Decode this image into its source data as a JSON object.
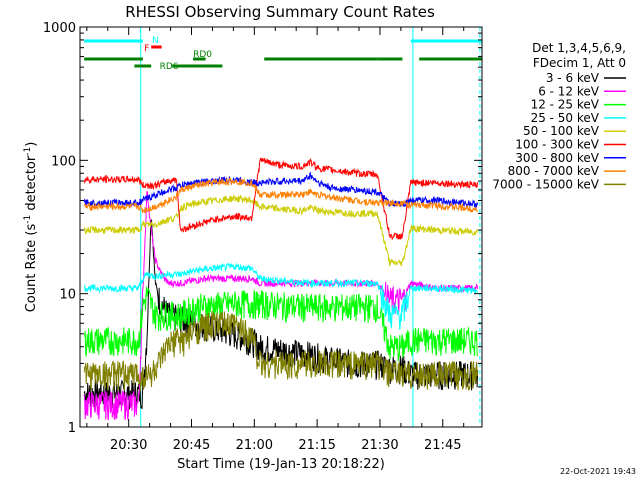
{
  "chart_data": {
    "type": "line",
    "title": "RHESSI Observing Summary Count Rates",
    "xlabel": "Start Time (19-Jan-13 20:18:22)",
    "ylabel_main": "Count Rate (s",
    "ylabel_sup1": "-1",
    "ylabel_mid": " detector",
    "ylabel_sup2": "-1",
    "ylabel_end": ")",
    "y_scale": "log",
    "ylim": [
      1,
      1000
    ],
    "xlim_minutes": [
      0,
      96
    ],
    "y_tick_labels": [
      {
        "value": 1,
        "label": "1"
      },
      {
        "value": 10,
        "label": "10"
      },
      {
        "value": 100,
        "label": "100"
      },
      {
        "value": 1000,
        "label": "1000"
      }
    ],
    "x_tick_labels": [
      {
        "minute": 11.63,
        "label": "20:30"
      },
      {
        "minute": 26.63,
        "label": "20:45"
      },
      {
        "minute": 41.63,
        "label": "21:00"
      },
      {
        "minute": 56.63,
        "label": "21:15"
      },
      {
        "minute": 71.63,
        "label": "21:30"
      },
      {
        "minute": 86.63,
        "label": "21:45"
      }
    ],
    "legend_header": [
      "Det 1,3,4,5,6,9,",
      "FDecim 1, Att 0"
    ],
    "legend_position": "right",
    "series": [
      {
        "name": "3 - 6 keV",
        "color": "#000000",
        "points": [
          [
            1,
            1.8
          ],
          [
            15,
            1.8
          ],
          [
            16,
            5
          ],
          [
            17,
            40
          ],
          [
            18,
            12
          ],
          [
            19,
            9
          ],
          [
            21,
            7
          ],
          [
            24,
            6.5
          ],
          [
            28,
            6
          ],
          [
            32,
            5.5
          ],
          [
            37,
            5
          ],
          [
            41,
            4.5
          ],
          [
            43,
            4
          ],
          [
            48,
            3.8
          ],
          [
            55,
            3.5
          ],
          [
            60,
            3.2
          ],
          [
            66,
            3
          ],
          [
            71,
            3
          ],
          [
            74,
            2.8
          ],
          [
            77,
            2.8
          ],
          [
            79,
            2.5
          ],
          [
            85,
            2.5
          ],
          [
            95,
            2.5
          ]
        ]
      },
      {
        "name": "6 - 12 keV",
        "color": "#ff00ff",
        "points": [
          [
            1,
            1.5
          ],
          [
            14,
            1.5
          ],
          [
            15,
            10
          ],
          [
            16,
            60
          ],
          [
            17,
            30
          ],
          [
            18,
            18
          ],
          [
            19,
            15
          ],
          [
            21,
            12
          ],
          [
            24,
            12
          ],
          [
            30,
            13
          ],
          [
            37,
            13
          ],
          [
            41,
            13
          ],
          [
            43,
            12
          ],
          [
            48,
            12
          ],
          [
            55,
            12
          ],
          [
            60,
            12
          ],
          [
            66,
            12
          ],
          [
            71,
            12
          ],
          [
            74,
            9
          ],
          [
            77,
            9
          ],
          [
            79,
            12
          ],
          [
            85,
            11
          ],
          [
            95,
            11
          ]
        ]
      },
      {
        "name": "12 - 25 keV",
        "color": "#00ff00",
        "points": [
          [
            1,
            4.5
          ],
          [
            14,
            4.5
          ],
          [
            15,
            8
          ],
          [
            16,
            10
          ],
          [
            18,
            7
          ],
          [
            21,
            7
          ],
          [
            24,
            7
          ],
          [
            28,
            8
          ],
          [
            32,
            8.2
          ],
          [
            37,
            8.5
          ],
          [
            41,
            8.5
          ],
          [
            43,
            8.5
          ],
          [
            48,
            8.2
          ],
          [
            55,
            8
          ],
          [
            60,
            8
          ],
          [
            66,
            8
          ],
          [
            71,
            8
          ],
          [
            74,
            4
          ],
          [
            77,
            4
          ],
          [
            79,
            4.5
          ],
          [
            85,
            4.5
          ],
          [
            95,
            4.5
          ]
        ]
      },
      {
        "name": "25 - 50 keV",
        "color": "#00ffff",
        "points": [
          [
            1,
            11
          ],
          [
            14,
            11
          ],
          [
            15,
            13
          ],
          [
            16,
            14
          ],
          [
            18,
            13.5
          ],
          [
            21,
            14
          ],
          [
            24,
            14
          ],
          [
            28,
            15
          ],
          [
            32,
            15.5
          ],
          [
            37,
            16
          ],
          [
            41,
            15.5
          ],
          [
            43,
            13
          ],
          [
            48,
            12.5
          ],
          [
            55,
            12
          ],
          [
            60,
            12
          ],
          [
            66,
            12
          ],
          [
            71,
            12
          ],
          [
            74,
            7
          ],
          [
            77,
            7
          ],
          [
            79,
            11
          ],
          [
            85,
            11
          ],
          [
            95,
            10.5
          ]
        ]
      },
      {
        "name": "50 - 100 keV",
        "color": "#cccc00",
        "points": [
          [
            1,
            30
          ],
          [
            14,
            30
          ],
          [
            15,
            33
          ],
          [
            18,
            33
          ],
          [
            21,
            36
          ],
          [
            23,
            37
          ],
          [
            24,
            44
          ],
          [
            28,
            48
          ],
          [
            32,
            50
          ],
          [
            37,
            52
          ],
          [
            41,
            50
          ],
          [
            43,
            45
          ],
          [
            48,
            43
          ],
          [
            53,
            42
          ],
          [
            55,
            44
          ],
          [
            57,
            42
          ],
          [
            60,
            41
          ],
          [
            66,
            40
          ],
          [
            71,
            40
          ],
          [
            74,
            17
          ],
          [
            77,
            17
          ],
          [
            79,
            31
          ],
          [
            85,
            30
          ],
          [
            95,
            29
          ]
        ]
      },
      {
        "name": "100 - 300 keV",
        "color": "#ff0000",
        "points": [
          [
            1,
            72
          ],
          [
            14,
            72
          ],
          [
            15,
            65
          ],
          [
            18,
            65
          ],
          [
            21,
            70
          ],
          [
            23,
            72
          ],
          [
            24,
            30
          ],
          [
            28,
            33
          ],
          [
            32,
            36
          ],
          [
            37,
            38
          ],
          [
            41,
            37
          ],
          [
            43,
            100
          ],
          [
            48,
            92
          ],
          [
            53,
            90
          ],
          [
            55,
            97
          ],
          [
            57,
            87
          ],
          [
            60,
            85
          ],
          [
            66,
            80
          ],
          [
            71,
            78
          ],
          [
            74,
            27
          ],
          [
            77,
            27
          ],
          [
            79,
            68
          ],
          [
            85,
            68
          ],
          [
            95,
            65
          ]
        ]
      },
      {
        "name": "300 - 800 keV",
        "color": "#0000ff",
        "points": [
          [
            1,
            48
          ],
          [
            14,
            48
          ],
          [
            15,
            50
          ],
          [
            18,
            55
          ],
          [
            21,
            60
          ],
          [
            23,
            62
          ],
          [
            24,
            65
          ],
          [
            28,
            68
          ],
          [
            32,
            70
          ],
          [
            37,
            72
          ],
          [
            41,
            68
          ],
          [
            43,
            68
          ],
          [
            48,
            70
          ],
          [
            53,
            70
          ],
          [
            55,
            77
          ],
          [
            57,
            68
          ],
          [
            60,
            62
          ],
          [
            66,
            60
          ],
          [
            71,
            58
          ],
          [
            74,
            47
          ],
          [
            77,
            47
          ],
          [
            79,
            50
          ],
          [
            85,
            50
          ],
          [
            95,
            47
          ]
        ]
      },
      {
        "name": "800 - 7000 keV",
        "color": "#ff8000",
        "points": [
          [
            1,
            45
          ],
          [
            14,
            45
          ],
          [
            15,
            42
          ],
          [
            18,
            45
          ],
          [
            21,
            50
          ],
          [
            23,
            53
          ],
          [
            24,
            60
          ],
          [
            28,
            65
          ],
          [
            32,
            68
          ],
          [
            37,
            70
          ],
          [
            41,
            68
          ],
          [
            43,
            55
          ],
          [
            48,
            55
          ],
          [
            53,
            56
          ],
          [
            55,
            58
          ],
          [
            57,
            55
          ],
          [
            60,
            53
          ],
          [
            66,
            50
          ],
          [
            71,
            48
          ],
          [
            74,
            48
          ],
          [
            77,
            48
          ],
          [
            79,
            46
          ],
          [
            85,
            46
          ],
          [
            95,
            43
          ]
        ]
      },
      {
        "name": "7000 - 15000 keV",
        "color": "#808000",
        "points": [
          [
            1,
            2.5
          ],
          [
            14,
            2.5
          ],
          [
            15,
            2.4
          ],
          [
            17,
            2.5
          ],
          [
            19,
            3
          ],
          [
            21,
            4
          ],
          [
            23,
            4.5
          ],
          [
            25,
            4.5
          ],
          [
            28,
            5.5
          ],
          [
            32,
            6
          ],
          [
            37,
            5.8
          ],
          [
            41,
            5
          ],
          [
            43,
            3
          ],
          [
            48,
            3
          ],
          [
            55,
            3
          ],
          [
            60,
            3
          ],
          [
            66,
            3
          ],
          [
            71,
            3
          ],
          [
            74,
            2.5
          ],
          [
            77,
            2.5
          ],
          [
            79,
            2.5
          ],
          [
            85,
            2.5
          ],
          [
            95,
            2.5
          ]
        ]
      }
    ],
    "flags": [
      {
        "label": "N",
        "color": "#00ffff",
        "segments": [
          [
            1,
            15
          ],
          [
            79,
            96
          ]
        ]
      },
      {
        "label": "F",
        "color": "#ff0000",
        "segments": [
          [
            17,
            19.5
          ]
        ]
      },
      {
        "label": "RD0",
        "color": "#008000",
        "segments": [
          [
            1,
            15
          ],
          [
            27,
            30
          ],
          [
            44,
            71
          ],
          [
            71,
            77
          ],
          [
            81,
            96
          ]
        ]
      },
      {
        "label": "RD6",
        "color": "#008000",
        "segments": [
          [
            13,
            17
          ],
          [
            22,
            34
          ]
        ]
      }
    ],
    "vertical_markers": [
      {
        "minute": 14.5,
        "color": "#00ffff"
      },
      {
        "minute": 79.5,
        "color": "#00ffff"
      },
      {
        "minute": 95.5,
        "color": "#00ffff"
      }
    ]
  },
  "footer_timestamp": "22-Oct-2021 19:43"
}
